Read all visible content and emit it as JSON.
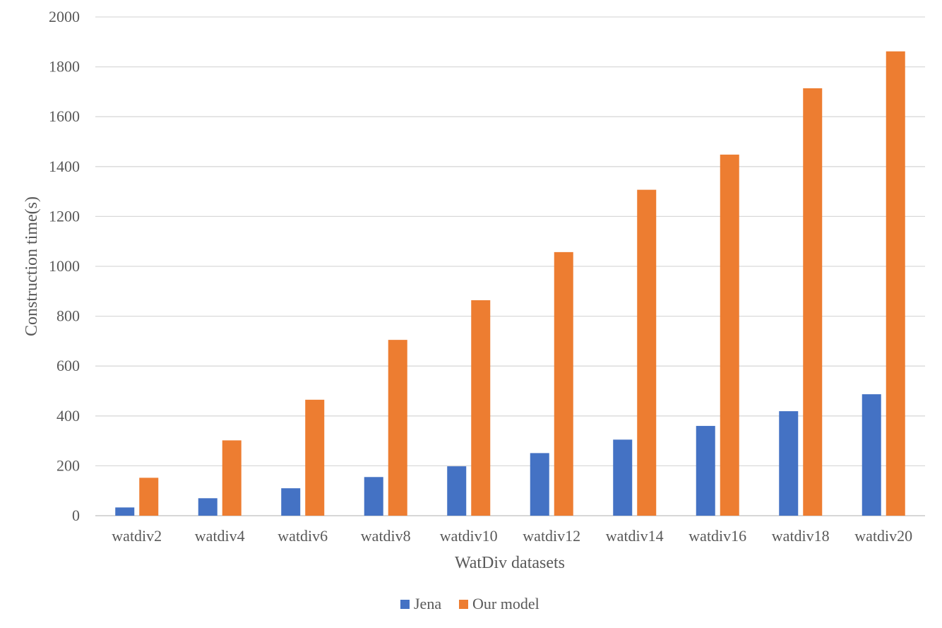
{
  "chart_data": {
    "type": "bar",
    "title": "",
    "xlabel": "WatDiv datasets",
    "ylabel": "Construction time(s)",
    "ylim": [
      0,
      2000
    ],
    "ytick_step": 200,
    "grid": true,
    "legend_position": "bottom",
    "categories": [
      "watdiv2",
      "watdiv4",
      "watdiv6",
      "watdiv8",
      "watdiv10",
      "watdiv12",
      "watdiv14",
      "watdiv16",
      "watdiv18",
      "watdiv20"
    ],
    "series": [
      {
        "name": "Jena",
        "color": "#4472c4",
        "values": [
          33,
          70,
          110,
          155,
          198,
          251,
          305,
          360,
          419,
          487
        ]
      },
      {
        "name": "Our model",
        "color": "#ed7d31",
        "values": [
          152,
          302,
          465,
          705,
          864,
          1057,
          1307,
          1448,
          1714,
          1862
        ]
      }
    ]
  }
}
